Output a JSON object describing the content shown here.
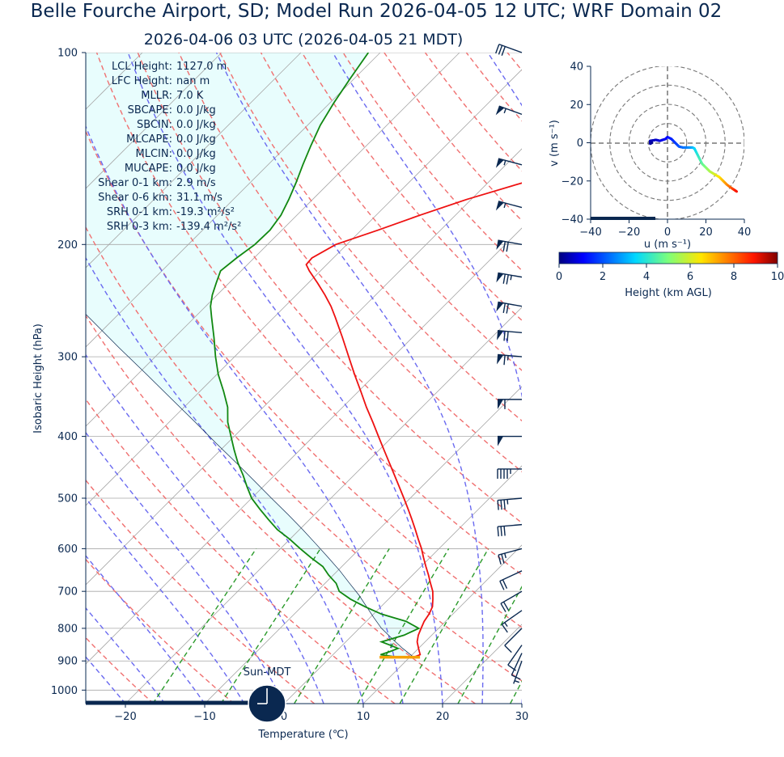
{
  "title": "Belle Fourche Airport, SD; Model Run 2026-04-05 12 UTC; WRF Domain 02",
  "subtitle": "2026-04-06 03 UTC  (2026-04-05 21 MDT)",
  "day_label": "Sun-MDT",
  "colors": {
    "text": "#0a2850",
    "temperature": "#ee1111",
    "dewpoint": "#118811",
    "parcel": "#0a2850",
    "cape_fill": "#e8fdfd",
    "dry_adiabat": "#f07070",
    "moist_adiabat": "#6a6af0",
    "mixing_ratio": "#2a9a2a",
    "isotherm": "#a8a8a8",
    "lcl_marker": "#f5a000"
  },
  "stats": [
    {
      "label": "LCL Height:",
      "value": "1127.0 m"
    },
    {
      "label": "LFC Height:",
      "value": "nan m"
    },
    {
      "label": "MLLR:",
      "value": "7.0 K"
    },
    {
      "label": "SBCAPE:",
      "value": "0.0 J/kg"
    },
    {
      "label": "SBCIN:",
      "value": "0.0 J/kg"
    },
    {
      "label": "MLCAPE:",
      "value": "0.0 J/kg"
    },
    {
      "label": "MLCIN:",
      "value": "0.0 J/kg"
    },
    {
      "label": "MUCAPE:",
      "value": "0.0 J/kg"
    },
    {
      "label": "Shear 0-1 km:",
      "value": "2.9 m/s"
    },
    {
      "label": "Shear 0-6 km:",
      "value": "31.1 m/s"
    },
    {
      "label": "SRH 0-1 km:",
      "value": "-19.3 m²/s²"
    },
    {
      "label": "SRH 0-3 km:",
      "value": "-139.4 m²/s²"
    }
  ],
  "chart_data": [
    {
      "type": "line",
      "name": "skew-t",
      "xlabel": "Temperature (℃)",
      "ylabel": "Isobaric Height (hPa)",
      "xlim": [
        -25,
        30
      ],
      "ylim": [
        1050,
        100
      ],
      "y_scale": "log",
      "skew": "45 degrees",
      "x_ticks": [
        "−20",
        "−10",
        "0",
        "10",
        "20",
        "30"
      ],
      "x_tick_values": [
        -20,
        -10,
        0,
        10,
        20,
        30
      ],
      "y_ticks": [
        100,
        200,
        300,
        400,
        500,
        600,
        700,
        800,
        900,
        1000
      ],
      "grid": true,
      "series": [
        {
          "name": "Temperature",
          "p": [
            888,
            880,
            860,
            840,
            820,
            800,
            780,
            760,
            740,
            720,
            700,
            680,
            660,
            640,
            620,
            600,
            580,
            560,
            540,
            520,
            500,
            480,
            460,
            440,
            420,
            400,
            380,
            360,
            340,
            320,
            300,
            280,
            260,
            250,
            240,
            230,
            220,
            215,
            210,
            200,
            190,
            180,
            170,
            160,
            150,
            140,
            130,
            120,
            110,
            100
          ],
          "t": [
            10.5,
            11.0,
            10.0,
            9.0,
            8.3,
            7.8,
            7.3,
            7.0,
            6.5,
            5.6,
            4.6,
            3.3,
            2.0,
            0.6,
            -0.8,
            -2.2,
            -3.8,
            -5.4,
            -7.1,
            -8.9,
            -10.8,
            -12.8,
            -14.9,
            -17.1,
            -19.4,
            -21.8,
            -24.3,
            -27.0,
            -29.7,
            -32.6,
            -35.6,
            -38.8,
            -42.3,
            -44.2,
            -46.4,
            -48.8,
            -51.4,
            -52.6,
            -52.7,
            -51.4,
            -47.9,
            -44.5,
            -40.6,
            -35.6,
            -30.0,
            -25.5,
            -22.0,
            -19.5,
            -17.5,
            -16.0
          ]
        },
        {
          "name": "Dewpoint",
          "p": [
            888,
            880,
            870,
            860,
            850,
            840,
            820,
            800,
            780,
            760,
            740,
            720,
            700,
            680,
            660,
            640,
            620,
            600,
            580,
            560,
            540,
            520,
            500,
            480,
            460,
            440,
            420,
            400,
            380,
            360,
            340,
            320,
            300,
            280,
            260,
            250,
            240,
            230,
            220,
            210,
            200,
            190,
            180,
            170,
            160,
            150,
            140,
            130,
            120,
            110,
            100
          ],
          "t": [
            8.5,
            6.0,
            6.8,
            7.4,
            6.0,
            4.5,
            6.5,
            7.5,
            5.0,
            1.0,
            -2.0,
            -4.8,
            -7.2,
            -8.6,
            -10.6,
            -12.4,
            -15.0,
            -17.5,
            -20.0,
            -22.8,
            -25.2,
            -27.6,
            -30.0,
            -32.0,
            -34.0,
            -36.2,
            -38.3,
            -40.4,
            -42.6,
            -44.5,
            -47.0,
            -49.8,
            -52.4,
            -55.0,
            -57.9,
            -59.4,
            -60.6,
            -61.6,
            -62.6,
            -62.2,
            -61.6,
            -61.5,
            -62.0,
            -63.0,
            -64.2,
            -65.6,
            -67.0,
            -68.4,
            -69.5,
            -70.5,
            -71.5
          ]
        },
        {
          "name": "Parcel",
          "p": [
            888,
            860,
            830,
            800,
            770,
            740,
            710,
            680,
            650,
            620,
            590,
            560,
            530,
            500,
            470,
            440,
            410,
            380,
            350,
            320,
            290,
            260,
            240,
            220,
            200
          ],
          "t": [
            10.5,
            8.0,
            5.4,
            2.8,
            0.5,
            -1.8,
            -4.2,
            -6.9,
            -9.7,
            -12.8,
            -16.1,
            -19.6,
            -23.4,
            -27.5,
            -31.8,
            -36.4,
            -41.4,
            -46.7,
            -52.5,
            -58.8,
            -65.8,
            -73.4,
            -79.0,
            -85.2,
            -92.0
          ]
        }
      ]
    },
    {
      "type": "line",
      "name": "hodograph",
      "xlabel": "u (m s⁻¹)",
      "ylabel": "v (m s⁻¹)",
      "xlim": [
        -40,
        40
      ],
      "ylim": [
        -40,
        40
      ],
      "x_ticks": [
        "−40",
        "−20",
        "0",
        "20",
        "40"
      ],
      "x_tick_values": [
        -40,
        -20,
        0,
        20,
        40
      ],
      "y_ticks": [
        "−40",
        "−20",
        "0",
        "20",
        "40"
      ],
      "y_tick_values": [
        -40,
        -20,
        0,
        20,
        40
      ],
      "rings": [
        10,
        20,
        30,
        40
      ],
      "color_scale": "Height (km AGL)",
      "colorbar_ticks": [
        "0",
        "2",
        "4",
        "6",
        "8",
        "10"
      ],
      "colorbar_tick_values": [
        0,
        2,
        4,
        6,
        8,
        10
      ],
      "h": [
        0.0,
        0.2,
        0.4,
        0.6,
        0.8,
        1.0,
        1.2,
        1.4,
        1.6,
        1.8,
        2.0,
        2.3,
        2.6,
        3.0,
        3.4,
        3.8,
        4.2,
        4.6,
        5.0,
        5.5,
        6.0,
        6.5,
        7.0,
        7.5,
        8.0,
        8.5,
        9.0
      ],
      "u": [
        -8.0,
        -9.0,
        -9.0,
        -6.0,
        -4.0,
        -1.0,
        0.0,
        2.0,
        3.0,
        5.0,
        6.0,
        8.0,
        11.0,
        13.0,
        14.0,
        15.0,
        16.5,
        18.0,
        20.0,
        22.0,
        24.5,
        27.0,
        29.0,
        31.0,
        33.0,
        34.5,
        36.0
      ],
      "v": [
        0.0,
        -0.5,
        1.0,
        1.5,
        1.0,
        2.0,
        3.0,
        2.0,
        1.0,
        -1.0,
        -2.0,
        -2.5,
        -2.5,
        -2.5,
        -3.0,
        -5.0,
        -8.0,
        -11.0,
        -13.0,
        -15.0,
        -16.5,
        -18.0,
        -20.0,
        -22.0,
        -23.5,
        -24.5,
        -25.5
      ]
    },
    {
      "type": "barbs",
      "name": "wind-profile",
      "units": "kt",
      "p": [
        100,
        125,
        150,
        175,
        200,
        225,
        250,
        275,
        300,
        350,
        400,
        450,
        500,
        550,
        600,
        650,
        700,
        750,
        800,
        850,
        875,
        900
      ],
      "speed": [
        30,
        55,
        55,
        55,
        70,
        75,
        70,
        70,
        65,
        60,
        50,
        45,
        35,
        30,
        25,
        20,
        20,
        15,
        12,
        10,
        8,
        5
      ],
      "direction": [
        290,
        290,
        285,
        285,
        280,
        280,
        280,
        275,
        275,
        270,
        270,
        270,
        265,
        265,
        255,
        245,
        240,
        235,
        225,
        215,
        205,
        200
      ]
    }
  ]
}
